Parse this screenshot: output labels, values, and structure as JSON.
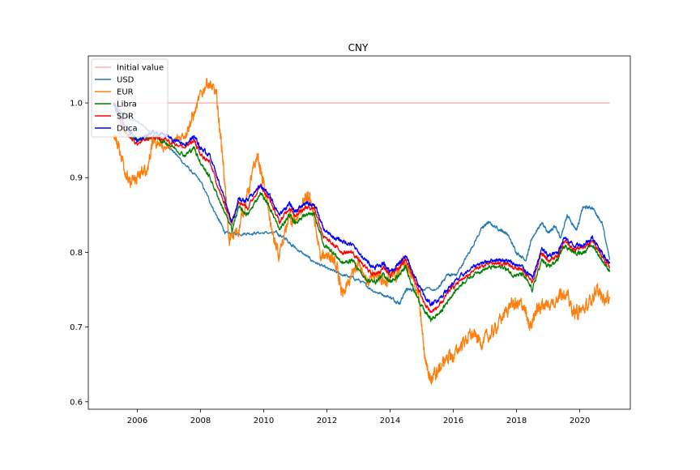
{
  "chart_data": {
    "type": "line",
    "title": "CNY",
    "xlabel": "",
    "ylabel": "",
    "xlim": [
      2004.45,
      2021.6
    ],
    "ylim": [
      0.59,
      1.063
    ],
    "x_ticks": [
      2006,
      2008,
      2010,
      2012,
      2014,
      2016,
      2018,
      2020
    ],
    "x_tick_labels": [
      "2006",
      "2008",
      "2010",
      "2012",
      "2014",
      "2016",
      "2018",
      "2020"
    ],
    "y_ticks": [
      0.6,
      0.7,
      0.8,
      0.9,
      1.0
    ],
    "y_tick_labels": [
      "0.6",
      "0.7",
      "0.8",
      "0.9",
      "1.0"
    ],
    "grid": false,
    "legend_position": "upper-left",
    "series": [
      {
        "name": "Initial value",
        "color": "#ffb2b2",
        "noise": 0,
        "points": [
          [
            2005.25,
            1.0
          ],
          [
            2020.95,
            1.0
          ]
        ]
      },
      {
        "name": "USD",
        "color": "#1f77b4",
        "noise": 0.003,
        "points": [
          [
            2005.25,
            1.0
          ],
          [
            2005.55,
            0.985
          ],
          [
            2006.0,
            0.975
          ],
          [
            2006.5,
            0.958
          ],
          [
            2007.0,
            0.942
          ],
          [
            2007.5,
            0.918
          ],
          [
            2008.0,
            0.895
          ],
          [
            2008.5,
            0.85
          ],
          [
            2008.8,
            0.825
          ],
          [
            2009.2,
            0.825
          ],
          [
            2009.7,
            0.826
          ],
          [
            2010.4,
            0.826
          ],
          [
            2010.7,
            0.818
          ],
          [
            2011.0,
            0.806
          ],
          [
            2011.5,
            0.79
          ],
          [
            2012.0,
            0.778
          ],
          [
            2012.5,
            0.77
          ],
          [
            2013.0,
            0.763
          ],
          [
            2013.5,
            0.748
          ],
          [
            2014.0,
            0.74
          ],
          [
            2014.3,
            0.732
          ],
          [
            2014.5,
            0.75
          ],
          [
            2014.8,
            0.75
          ],
          [
            2015.5,
            0.75
          ],
          [
            2015.8,
            0.77
          ],
          [
            2016.1,
            0.77
          ],
          [
            2016.5,
            0.8
          ],
          [
            2016.9,
            0.832
          ],
          [
            2017.1,
            0.84
          ],
          [
            2017.5,
            0.83
          ],
          [
            2017.7,
            0.825
          ],
          [
            2018.0,
            0.8
          ],
          [
            2018.3,
            0.79
          ],
          [
            2018.5,
            0.82
          ],
          [
            2018.8,
            0.84
          ],
          [
            2019.0,
            0.825
          ],
          [
            2019.2,
            0.835
          ],
          [
            2019.4,
            0.82
          ],
          [
            2019.6,
            0.85
          ],
          [
            2019.9,
            0.83
          ],
          [
            2020.1,
            0.86
          ],
          [
            2020.4,
            0.86
          ],
          [
            2020.7,
            0.84
          ],
          [
            2020.95,
            0.79
          ]
        ]
      },
      {
        "name": "EUR",
        "color": "#ff7f0e",
        "noise": 0.012,
        "points": [
          [
            2005.25,
            0.96
          ],
          [
            2005.5,
            0.93
          ],
          [
            2005.75,
            0.89
          ],
          [
            2006.0,
            0.9
          ],
          [
            2006.3,
            0.91
          ],
          [
            2006.5,
            0.95
          ],
          [
            2007.0,
            0.94
          ],
          [
            2007.5,
            0.96
          ],
          [
            2007.8,
            0.985
          ],
          [
            2008.2,
            1.03
          ],
          [
            2008.5,
            1.01
          ],
          [
            2008.7,
            0.93
          ],
          [
            2008.9,
            0.815
          ],
          [
            2009.2,
            0.83
          ],
          [
            2009.5,
            0.88
          ],
          [
            2009.8,
            0.93
          ],
          [
            2010.0,
            0.89
          ],
          [
            2010.3,
            0.82
          ],
          [
            2010.5,
            0.79
          ],
          [
            2010.8,
            0.85
          ],
          [
            2011.0,
            0.84
          ],
          [
            2011.3,
            0.87
          ],
          [
            2011.5,
            0.87
          ],
          [
            2011.8,
            0.79
          ],
          [
            2012.0,
            0.8
          ],
          [
            2012.3,
            0.78
          ],
          [
            2012.5,
            0.74
          ],
          [
            2012.8,
            0.77
          ],
          [
            2013.0,
            0.79
          ],
          [
            2013.3,
            0.76
          ],
          [
            2013.6,
            0.77
          ],
          [
            2013.9,
            0.76
          ],
          [
            2014.2,
            0.77
          ],
          [
            2014.4,
            0.79
          ],
          [
            2014.6,
            0.78
          ],
          [
            2014.9,
            0.74
          ],
          [
            2015.1,
            0.66
          ],
          [
            2015.3,
            0.63
          ],
          [
            2015.5,
            0.64
          ],
          [
            2015.8,
            0.66
          ],
          [
            2016.0,
            0.66
          ],
          [
            2016.3,
            0.68
          ],
          [
            2016.6,
            0.69
          ],
          [
            2016.9,
            0.68
          ],
          [
            2017.2,
            0.69
          ],
          [
            2017.5,
            0.71
          ],
          [
            2017.8,
            0.73
          ],
          [
            2018.0,
            0.73
          ],
          [
            2018.2,
            0.73
          ],
          [
            2018.4,
            0.7
          ],
          [
            2018.6,
            0.72
          ],
          [
            2018.8,
            0.73
          ],
          [
            2019.0,
            0.73
          ],
          [
            2019.3,
            0.74
          ],
          [
            2019.5,
            0.75
          ],
          [
            2019.8,
            0.72
          ],
          [
            2020.0,
            0.72
          ],
          [
            2020.3,
            0.73
          ],
          [
            2020.5,
            0.75
          ],
          [
            2020.7,
            0.74
          ],
          [
            2020.95,
            0.74
          ]
        ]
      },
      {
        "name": "Libra",
        "color": "#008000",
        "noise": 0.004,
        "points": [
          [
            2005.25,
            1.0
          ],
          [
            2005.6,
            0.96
          ],
          [
            2006.0,
            0.95
          ],
          [
            2006.5,
            0.955
          ],
          [
            2007.0,
            0.945
          ],
          [
            2007.5,
            0.93
          ],
          [
            2007.8,
            0.94
          ],
          [
            2008.0,
            0.92
          ],
          [
            2008.3,
            0.9
          ],
          [
            2008.7,
            0.86
          ],
          [
            2009.0,
            0.83
          ],
          [
            2009.2,
            0.86
          ],
          [
            2009.5,
            0.85
          ],
          [
            2009.9,
            0.88
          ],
          [
            2010.2,
            0.86
          ],
          [
            2010.5,
            0.83
          ],
          [
            2010.8,
            0.85
          ],
          [
            2011.0,
            0.84
          ],
          [
            2011.3,
            0.85
          ],
          [
            2011.6,
            0.85
          ],
          [
            2011.9,
            0.81
          ],
          [
            2012.2,
            0.8
          ],
          [
            2012.5,
            0.785
          ],
          [
            2012.8,
            0.79
          ],
          [
            2013.2,
            0.765
          ],
          [
            2013.5,
            0.76
          ],
          [
            2013.8,
            0.77
          ],
          [
            2014.0,
            0.76
          ],
          [
            2014.3,
            0.77
          ],
          [
            2014.5,
            0.78
          ],
          [
            2014.8,
            0.745
          ],
          [
            2015.1,
            0.72
          ],
          [
            2015.3,
            0.71
          ],
          [
            2015.6,
            0.72
          ],
          [
            2015.9,
            0.74
          ],
          [
            2016.3,
            0.76
          ],
          [
            2016.8,
            0.775
          ],
          [
            2017.2,
            0.78
          ],
          [
            2017.6,
            0.78
          ],
          [
            2017.9,
            0.77
          ],
          [
            2018.2,
            0.77
          ],
          [
            2018.5,
            0.75
          ],
          [
            2018.8,
            0.79
          ],
          [
            2019.0,
            0.78
          ],
          [
            2019.3,
            0.79
          ],
          [
            2019.5,
            0.81
          ],
          [
            2019.8,
            0.8
          ],
          [
            2020.1,
            0.8
          ],
          [
            2020.4,
            0.81
          ],
          [
            2020.7,
            0.79
          ],
          [
            2020.95,
            0.775
          ]
        ]
      },
      {
        "name": "SDR",
        "color": "#ff0000",
        "noise": 0.004,
        "points": [
          [
            2005.25,
            1.0
          ],
          [
            2005.6,
            0.96
          ],
          [
            2006.0,
            0.945
          ],
          [
            2006.5,
            0.955
          ],
          [
            2007.0,
            0.95
          ],
          [
            2007.5,
            0.94
          ],
          [
            2007.8,
            0.95
          ],
          [
            2008.0,
            0.93
          ],
          [
            2008.3,
            0.92
          ],
          [
            2008.7,
            0.87
          ],
          [
            2009.0,
            0.84
          ],
          [
            2009.2,
            0.87
          ],
          [
            2009.5,
            0.86
          ],
          [
            2009.9,
            0.89
          ],
          [
            2010.2,
            0.87
          ],
          [
            2010.5,
            0.84
          ],
          [
            2010.8,
            0.86
          ],
          [
            2011.0,
            0.85
          ],
          [
            2011.3,
            0.86
          ],
          [
            2011.6,
            0.86
          ],
          [
            2011.9,
            0.82
          ],
          [
            2012.2,
            0.81
          ],
          [
            2012.5,
            0.8
          ],
          [
            2012.8,
            0.8
          ],
          [
            2013.2,
            0.78
          ],
          [
            2013.5,
            0.77
          ],
          [
            2013.8,
            0.78
          ],
          [
            2014.0,
            0.77
          ],
          [
            2014.3,
            0.78
          ],
          [
            2014.5,
            0.79
          ],
          [
            2014.8,
            0.76
          ],
          [
            2015.1,
            0.73
          ],
          [
            2015.3,
            0.72
          ],
          [
            2015.6,
            0.73
          ],
          [
            2015.9,
            0.75
          ],
          [
            2016.3,
            0.765
          ],
          [
            2016.8,
            0.78
          ],
          [
            2017.2,
            0.785
          ],
          [
            2017.6,
            0.785
          ],
          [
            2017.9,
            0.78
          ],
          [
            2018.2,
            0.775
          ],
          [
            2018.5,
            0.76
          ],
          [
            2018.8,
            0.8
          ],
          [
            2019.0,
            0.79
          ],
          [
            2019.3,
            0.795
          ],
          [
            2019.5,
            0.815
          ],
          [
            2019.8,
            0.805
          ],
          [
            2020.1,
            0.805
          ],
          [
            2020.4,
            0.815
          ],
          [
            2020.7,
            0.795
          ],
          [
            2020.95,
            0.78
          ]
        ]
      },
      {
        "name": "Duca",
        "color": "#0000ff",
        "noise": 0.004,
        "points": [
          [
            2005.25,
            1.0
          ],
          [
            2005.6,
            0.97
          ],
          [
            2006.0,
            0.95
          ],
          [
            2006.5,
            0.96
          ],
          [
            2007.0,
            0.955
          ],
          [
            2007.5,
            0.945
          ],
          [
            2007.8,
            0.955
          ],
          [
            2008.0,
            0.94
          ],
          [
            2008.3,
            0.93
          ],
          [
            2008.7,
            0.88
          ],
          [
            2009.0,
            0.84
          ],
          [
            2009.2,
            0.87
          ],
          [
            2009.5,
            0.87
          ],
          [
            2009.9,
            0.89
          ],
          [
            2010.2,
            0.875
          ],
          [
            2010.5,
            0.85
          ],
          [
            2010.8,
            0.865
          ],
          [
            2011.0,
            0.855
          ],
          [
            2011.3,
            0.865
          ],
          [
            2011.6,
            0.865
          ],
          [
            2011.9,
            0.83
          ],
          [
            2012.2,
            0.82
          ],
          [
            2012.5,
            0.815
          ],
          [
            2012.8,
            0.81
          ],
          [
            2013.2,
            0.79
          ],
          [
            2013.5,
            0.78
          ],
          [
            2013.8,
            0.785
          ],
          [
            2014.0,
            0.775
          ],
          [
            2014.3,
            0.785
          ],
          [
            2014.5,
            0.795
          ],
          [
            2014.8,
            0.765
          ],
          [
            2015.1,
            0.74
          ],
          [
            2015.3,
            0.73
          ],
          [
            2015.6,
            0.74
          ],
          [
            2015.9,
            0.755
          ],
          [
            2016.3,
            0.77
          ],
          [
            2016.8,
            0.785
          ],
          [
            2017.2,
            0.79
          ],
          [
            2017.6,
            0.79
          ],
          [
            2017.9,
            0.785
          ],
          [
            2018.2,
            0.78
          ],
          [
            2018.5,
            0.765
          ],
          [
            2018.8,
            0.805
          ],
          [
            2019.0,
            0.795
          ],
          [
            2019.3,
            0.8
          ],
          [
            2019.5,
            0.82
          ],
          [
            2019.8,
            0.81
          ],
          [
            2020.1,
            0.81
          ],
          [
            2020.4,
            0.82
          ],
          [
            2020.7,
            0.8
          ],
          [
            2020.95,
            0.785
          ]
        ]
      }
    ]
  }
}
